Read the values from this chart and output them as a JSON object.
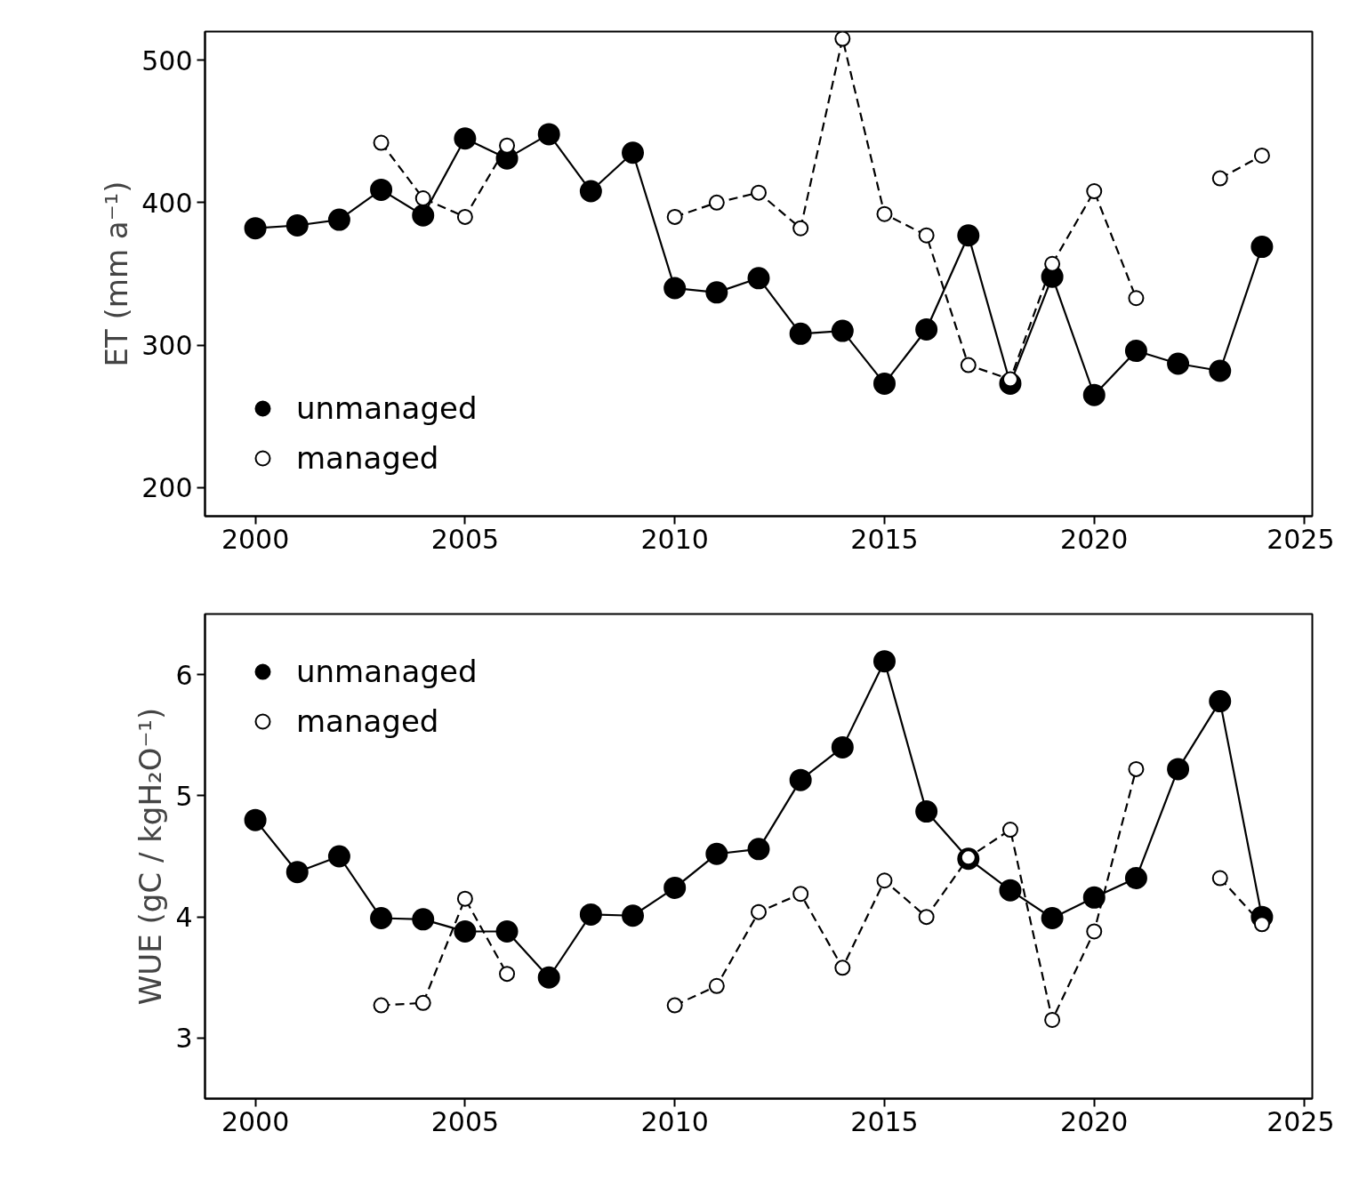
{
  "chart_data": [
    {
      "type": "line",
      "ylabel": "ET (mm a⁻¹)",
      "x": [
        2000,
        2001,
        2002,
        2003,
        2004,
        2005,
        2006,
        2007,
        2008,
        2009,
        2010,
        2011,
        2012,
        2013,
        2014,
        2015,
        2016,
        2017,
        2018,
        2019,
        2020,
        2021,
        2022,
        2023,
        2024
      ],
      "series": [
        {
          "name": "unmanaged",
          "color": "#000000",
          "line_style": "solid",
          "values": [
            382,
            384,
            388,
            409,
            391,
            445,
            431,
            448,
            408,
            435,
            340,
            337,
            347,
            308,
            310,
            273,
            311,
            377,
            273,
            348,
            265,
            296,
            287,
            282,
            369
          ]
        },
        {
          "name": "managed",
          "color": "#000000",
          "line_style": "dashed",
          "values": [
            null,
            null,
            null,
            442,
            403,
            390,
            440,
            null,
            null,
            null,
            390,
            400,
            407,
            382,
            515,
            392,
            377,
            286,
            276,
            357,
            408,
            333,
            null,
            417,
            433
          ]
        }
      ],
      "marker": "circle",
      "xlim": [
        1998.8,
        2025.2
      ],
      "xticks": [
        2000,
        2005,
        2010,
        2015,
        2020,
        2025
      ],
      "ylim": [
        180,
        520
      ],
      "yticks": [
        200,
        300,
        400,
        500
      ],
      "grid": false,
      "legend": "bottom left"
    },
    {
      "type": "line",
      "ylabel": "WUE (gC / kgH₂O⁻¹)",
      "x": [
        2000,
        2001,
        2002,
        2003,
        2004,
        2005,
        2006,
        2007,
        2008,
        2009,
        2010,
        2011,
        2012,
        2013,
        2014,
        2015,
        2016,
        2017,
        2018,
        2019,
        2020,
        2021,
        2022,
        2023,
        2024
      ],
      "series": [
        {
          "name": "unmanaged",
          "color": "#000000",
          "line_style": "solid",
          "values": [
            4.8,
            4.37,
            4.5,
            3.99,
            3.98,
            3.88,
            3.88,
            3.5,
            4.02,
            4.01,
            4.24,
            4.52,
            4.56,
            5.13,
            5.4,
            6.11,
            4.87,
            4.48,
            4.22,
            3.99,
            4.16,
            4.32,
            5.22,
            5.78,
            4.0
          ]
        },
        {
          "name": "managed",
          "color": "#000000",
          "line_style": "dashed",
          "values": [
            null,
            null,
            null,
            3.27,
            3.29,
            4.15,
            3.53,
            null,
            null,
            null,
            3.27,
            3.43,
            4.04,
            4.19,
            3.58,
            4.3,
            4.0,
            4.49,
            4.72,
            3.15,
            3.88,
            5.22,
            null,
            4.32,
            3.94
          ]
        }
      ],
      "marker": "circle",
      "xlim": [
        1998.8,
        2025.2
      ],
      "xticks": [
        2000,
        2005,
        2010,
        2015,
        2020,
        2025
      ],
      "ylim": [
        2.5,
        6.5
      ],
      "yticks": [
        3,
        4,
        5,
        6
      ],
      "grid": false,
      "legend": "top left"
    }
  ]
}
